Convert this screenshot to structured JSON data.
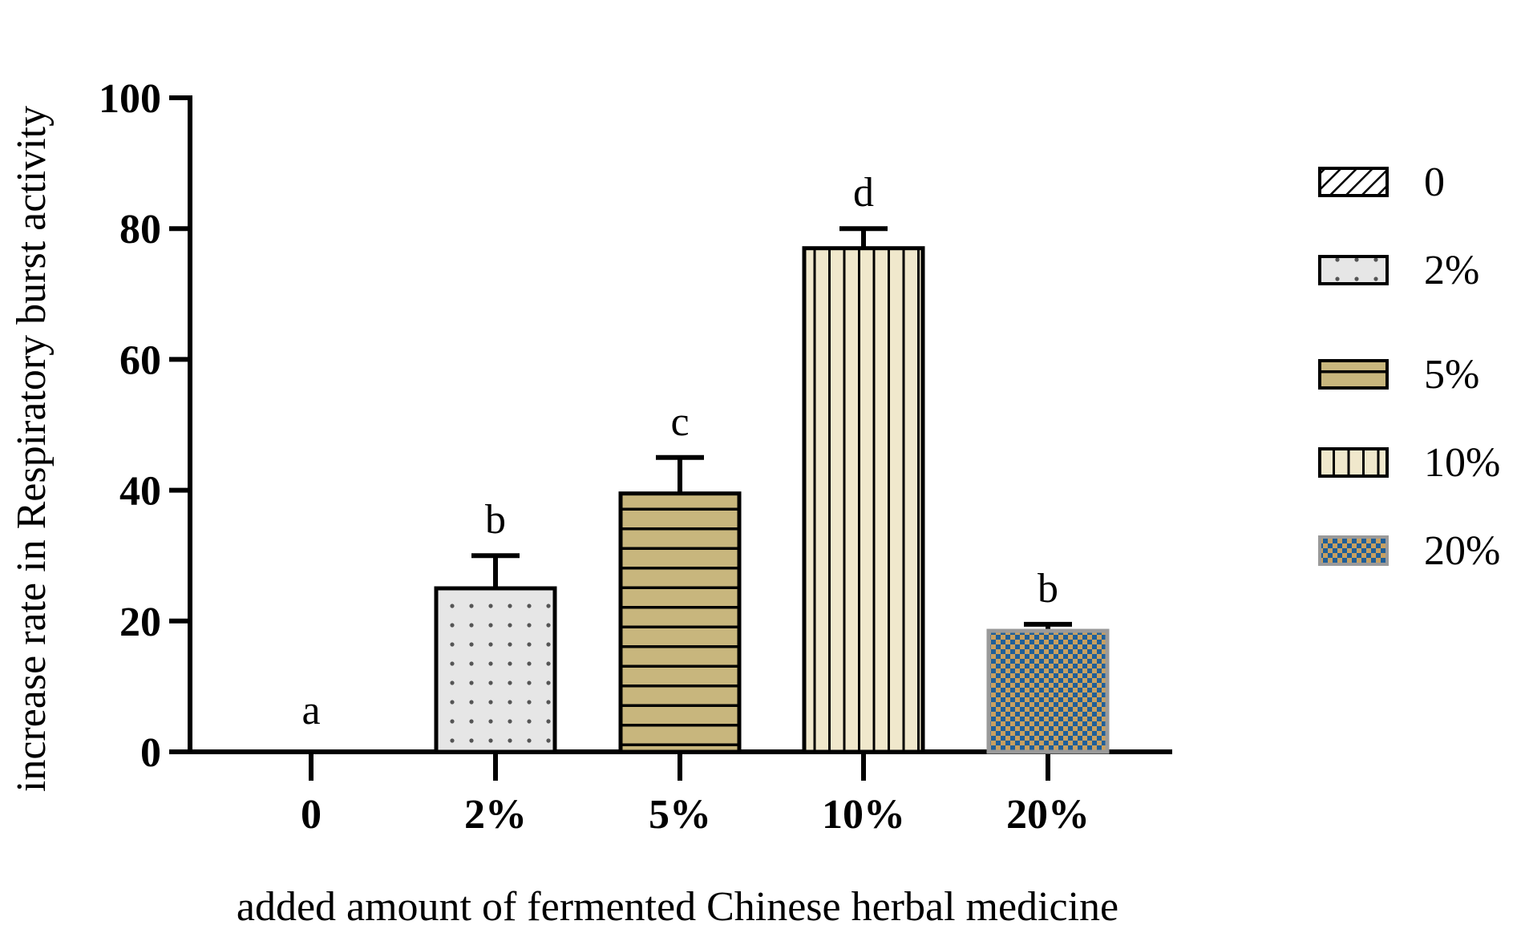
{
  "chart_data": {
    "type": "bar",
    "title": "",
    "xlabel": "added amount of fermented Chinese herbal medicine",
    "ylabel": "increase rate in Respiratory burst activity",
    "ylim": [
      0,
      100
    ],
    "yticks": [
      "0",
      "20",
      "40",
      "60",
      "80",
      "100"
    ],
    "categories": [
      "0",
      "2%",
      "5%",
      "10%",
      "20%"
    ],
    "values": [
      0,
      25,
      39.5,
      77,
      18.5
    ],
    "errors": [
      0,
      5,
      5.5,
      3,
      1
    ],
    "significance_labels": [
      "a",
      "b",
      "c",
      "d",
      "b"
    ],
    "legend": {
      "position": "right",
      "entries": [
        "0",
        "2%",
        "5%",
        "10%",
        "20%"
      ]
    },
    "patterns": [
      "diagonal-hatch",
      "dots",
      "horizontal-lines",
      "vertical-lines",
      "checker"
    ],
    "colors": {
      "bar_0": "#ffffff",
      "bar_2": "#e6e6e6",
      "bar_5": "#c8b67d",
      "bar_10": "#f0e8cc",
      "bar_20_a": "#1f5f99",
      "bar_20_b": "#c8a060",
      "stroke": "#000000"
    },
    "grid": false
  }
}
